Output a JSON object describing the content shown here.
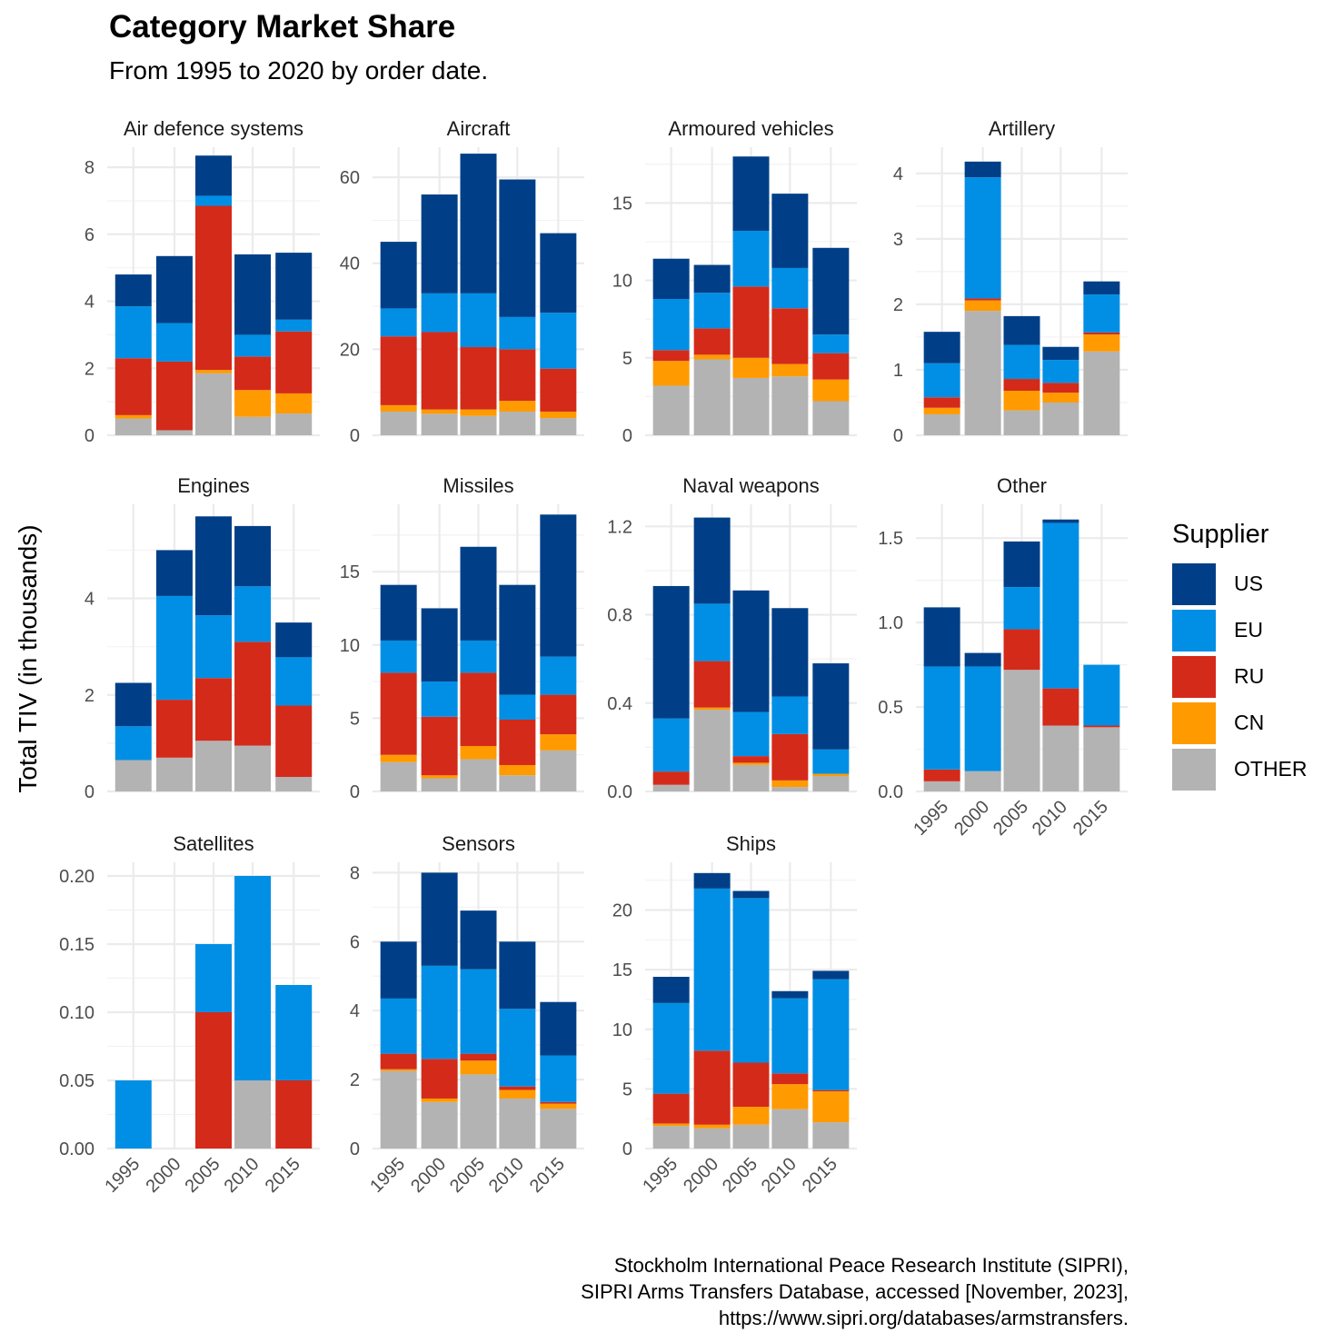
{
  "title": "Category Market Share",
  "subtitle": "From 1995 to 2020 by order date.",
  "caption": [
    "Stockholm International Peace Research Institute (SIPRI),",
    "SIPRI Arms Transfers Database, accessed [November, 2023],",
    "https://www.sipri.org/databases/armstransfers."
  ],
  "legend": {
    "title": "Supplier",
    "items": [
      {
        "label": "US",
        "color": "#003F87"
      },
      {
        "label": "EU",
        "color": "#008FE5"
      },
      {
        "label": "RU",
        "color": "#D42A1A"
      },
      {
        "label": "CN",
        "color": "#FF9A00"
      },
      {
        "label": "OTHER",
        "color": "#B3B3B3"
      }
    ]
  },
  "chart_data": {
    "type": "bar",
    "stacked": true,
    "ylabel": "Total TIV (in thousands)",
    "xlabel": "",
    "x": [
      1995,
      2000,
      2005,
      2010,
      2015
    ],
    "x_ticks": [
      "1995",
      "2000",
      "2005",
      "2010",
      "2015"
    ],
    "stack_order_bottom_to_top": [
      "OTHER",
      "CN",
      "RU",
      "EU",
      "US"
    ],
    "colors": {
      "US": "#003F87",
      "EU": "#008FE5",
      "RU": "#D42A1A",
      "CN": "#FF9A00",
      "OTHER": "#B3B3B3"
    },
    "panels": [
      {
        "name": "Air defence systems",
        "ylim": [
          0,
          8.6
        ],
        "y_ticks": [
          0,
          2,
          4,
          6,
          8
        ],
        "tick_labels": [
          "0",
          "2",
          "4",
          "6",
          "8"
        ],
        "bars": [
          {
            "OTHER": 0.5,
            "CN": 0.1,
            "RU": 1.7,
            "EU": 1.55,
            "US": 0.95
          },
          {
            "OTHER": 0.15,
            "CN": 0.0,
            "RU": 2.05,
            "EU": 1.15,
            "US": 2.0
          },
          {
            "OTHER": 1.85,
            "CN": 0.1,
            "RU": 4.9,
            "EU": 0.3,
            "US": 1.2
          },
          {
            "OTHER": 0.55,
            "CN": 0.8,
            "RU": 1.0,
            "EU": 0.65,
            "US": 2.4
          },
          {
            "OTHER": 0.65,
            "CN": 0.6,
            "RU": 1.85,
            "EU": 0.35,
            "US": 2.0
          }
        ]
      },
      {
        "name": "Aircraft",
        "ylim": [
          0,
          67
        ],
        "y_ticks": [
          0,
          20,
          40,
          60
        ],
        "tick_labels": [
          "0",
          "20",
          "40",
          "60"
        ],
        "bars": [
          {
            "OTHER": 5.5,
            "CN": 1.5,
            "RU": 16.0,
            "EU": 6.5,
            "US": 15.5
          },
          {
            "OTHER": 5.0,
            "CN": 1.0,
            "RU": 18.0,
            "EU": 9.0,
            "US": 23.0
          },
          {
            "OTHER": 4.5,
            "CN": 1.5,
            "RU": 14.5,
            "EU": 12.5,
            "US": 32.5
          },
          {
            "OTHER": 5.5,
            "CN": 2.5,
            "RU": 12.0,
            "EU": 7.5,
            "US": 32.0
          },
          {
            "OTHER": 4.0,
            "CN": 1.5,
            "RU": 10.0,
            "EU": 13.0,
            "US": 18.5
          }
        ]
      },
      {
        "name": "Armoured vehicles",
        "ylim": [
          0,
          18.6
        ],
        "y_ticks": [
          0,
          5,
          10,
          15
        ],
        "tick_labels": [
          "0",
          "5",
          "10",
          "15"
        ],
        "bars": [
          {
            "OTHER": 3.2,
            "CN": 1.6,
            "RU": 0.7,
            "EU": 3.3,
            "US": 2.6
          },
          {
            "OTHER": 4.9,
            "CN": 0.3,
            "RU": 1.7,
            "EU": 2.3,
            "US": 1.8
          },
          {
            "OTHER": 3.7,
            "CN": 1.3,
            "RU": 4.6,
            "EU": 3.6,
            "US": 4.8
          },
          {
            "OTHER": 3.8,
            "CN": 0.8,
            "RU": 3.6,
            "EU": 2.6,
            "US": 4.8
          },
          {
            "OTHER": 2.2,
            "CN": 1.4,
            "RU": 1.7,
            "EU": 1.2,
            "US": 5.6
          }
        ]
      },
      {
        "name": "Artillery",
        "ylim": [
          0,
          4.4
        ],
        "y_ticks": [
          0,
          1,
          2,
          3,
          4
        ],
        "tick_labels": [
          "0",
          "1",
          "2",
          "3",
          "4"
        ],
        "bars": [
          {
            "OTHER": 0.32,
            "CN": 0.1,
            "RU": 0.16,
            "EU": 0.52,
            "US": 0.48
          },
          {
            "OTHER": 1.9,
            "CN": 0.16,
            "RU": 0.03,
            "EU": 1.85,
            "US": 0.24
          },
          {
            "OTHER": 0.38,
            "CN": 0.3,
            "RU": 0.18,
            "EU": 0.52,
            "US": 0.44
          },
          {
            "OTHER": 0.5,
            "CN": 0.15,
            "RU": 0.15,
            "EU": 0.35,
            "US": 0.2
          },
          {
            "OTHER": 1.28,
            "CN": 0.26,
            "RU": 0.03,
            "EU": 0.58,
            "US": 0.2
          }
        ]
      },
      {
        "name": "Engines",
        "ylim": [
          0,
          5.95
        ],
        "y_ticks": [
          0,
          2,
          4
        ],
        "tick_labels": [
          "0",
          "2",
          "4"
        ],
        "bars": [
          {
            "OTHER": 0.65,
            "CN": 0.0,
            "RU": 0.0,
            "EU": 0.7,
            "US": 0.9
          },
          {
            "OTHER": 0.7,
            "CN": 0.0,
            "RU": 1.2,
            "EU": 2.15,
            "US": 0.95
          },
          {
            "OTHER": 1.05,
            "CN": 0.0,
            "RU": 1.3,
            "EU": 1.3,
            "US": 2.05
          },
          {
            "OTHER": 0.95,
            "CN": 0.0,
            "RU": 2.15,
            "EU": 1.15,
            "US": 1.25
          },
          {
            "OTHER": 0.3,
            "CN": 0.0,
            "RU": 1.48,
            "EU": 1.0,
            "US": 0.72
          }
        ]
      },
      {
        "name": "Missiles",
        "ylim": [
          0,
          19.6
        ],
        "y_ticks": [
          0,
          5,
          10,
          15
        ],
        "tick_labels": [
          "0",
          "5",
          "10",
          "15"
        ],
        "bars": [
          {
            "OTHER": 2.0,
            "CN": 0.5,
            "RU": 5.6,
            "EU": 2.2,
            "US": 3.8
          },
          {
            "OTHER": 0.9,
            "CN": 0.2,
            "RU": 4.0,
            "EU": 2.4,
            "US": 5.0
          },
          {
            "OTHER": 2.2,
            "CN": 0.9,
            "RU": 5.0,
            "EU": 2.2,
            "US": 6.4
          },
          {
            "OTHER": 1.1,
            "CN": 0.7,
            "RU": 3.1,
            "EU": 1.7,
            "US": 7.5
          },
          {
            "OTHER": 2.8,
            "CN": 1.1,
            "RU": 2.7,
            "EU": 2.6,
            "US": 9.7
          }
        ]
      },
      {
        "name": "Naval weapons",
        "ylim": [
          0,
          1.3
        ],
        "y_ticks": [
          0,
          0.4,
          0.8,
          1.2
        ],
        "tick_labels": [
          "0.0",
          "0.4",
          "0.8",
          "1.2"
        ],
        "bars": [
          {
            "OTHER": 0.03,
            "CN": 0.0,
            "RU": 0.06,
            "EU": 0.24,
            "US": 0.6
          },
          {
            "OTHER": 0.37,
            "CN": 0.01,
            "RU": 0.21,
            "EU": 0.26,
            "US": 0.39
          },
          {
            "OTHER": 0.12,
            "CN": 0.01,
            "RU": 0.03,
            "EU": 0.2,
            "US": 0.55
          },
          {
            "OTHER": 0.02,
            "CN": 0.03,
            "RU": 0.21,
            "EU": 0.17,
            "US": 0.4
          },
          {
            "OTHER": 0.07,
            "CN": 0.01,
            "RU": 0.0,
            "EU": 0.11,
            "US": 0.39
          }
        ]
      },
      {
        "name": "Other",
        "ylim": [
          0,
          1.7
        ],
        "y_ticks": [
          0,
          0.5,
          1.0,
          1.5
        ],
        "tick_labels": [
          "0.0",
          "0.5",
          "1.0",
          "1.5"
        ],
        "bars": [
          {
            "OTHER": 0.06,
            "CN": 0.0,
            "RU": 0.07,
            "EU": 0.61,
            "US": 0.35
          },
          {
            "OTHER": 0.12,
            "CN": 0.0,
            "RU": 0.0,
            "EU": 0.62,
            "US": 0.08
          },
          {
            "OTHER": 0.72,
            "CN": 0.0,
            "RU": 0.24,
            "EU": 0.25,
            "US": 0.27
          },
          {
            "OTHER": 0.39,
            "CN": 0.0,
            "RU": 0.22,
            "EU": 0.98,
            "US": 0.02
          },
          {
            "OTHER": 0.38,
            "CN": 0.0,
            "RU": 0.01,
            "EU": 0.36,
            "US": 0.0
          }
        ]
      },
      {
        "name": "Satellites",
        "ylim": [
          0,
          0.21
        ],
        "y_ticks": [
          0,
          0.05,
          0.1,
          0.15,
          0.2
        ],
        "tick_labels": [
          "0.00",
          "0.05",
          "0.10",
          "0.15",
          "0.20"
        ],
        "bars": [
          {
            "OTHER": 0.0,
            "CN": 0.0,
            "RU": 0.0,
            "EU": 0.05,
            "US": 0.0
          },
          {
            "OTHER": 0.0,
            "CN": 0.0,
            "RU": 0.0,
            "EU": 0.0,
            "US": 0.0
          },
          {
            "OTHER": 0.0,
            "CN": 0.0,
            "RU": 0.1,
            "EU": 0.05,
            "US": 0.0
          },
          {
            "OTHER": 0.05,
            "CN": 0.0,
            "RU": 0.0,
            "EU": 0.15,
            "US": 0.0
          },
          {
            "OTHER": 0.0,
            "CN": 0.0,
            "RU": 0.05,
            "EU": 0.07,
            "US": 0.0
          }
        ]
      },
      {
        "name": "Sensors",
        "ylim": [
          0,
          8.3
        ],
        "y_ticks": [
          0,
          2,
          4,
          6,
          8
        ],
        "tick_labels": [
          "0",
          "2",
          "4",
          "6",
          "8"
        ],
        "bars": [
          {
            "OTHER": 2.25,
            "CN": 0.05,
            "RU": 0.45,
            "EU": 1.6,
            "US": 1.65
          },
          {
            "OTHER": 1.35,
            "CN": 0.1,
            "RU": 1.15,
            "EU": 2.7,
            "US": 2.7
          },
          {
            "OTHER": 2.15,
            "CN": 0.4,
            "RU": 0.2,
            "EU": 2.45,
            "US": 1.7
          },
          {
            "OTHER": 1.45,
            "CN": 0.25,
            "RU": 0.1,
            "EU": 2.25,
            "US": 1.95
          },
          {
            "OTHER": 1.15,
            "CN": 0.15,
            "RU": 0.05,
            "EU": 1.35,
            "US": 1.55
          }
        ]
      },
      {
        "name": "Ships",
        "ylim": [
          0,
          24
        ],
        "y_ticks": [
          0,
          5,
          10,
          15,
          20
        ],
        "tick_labels": [
          "0",
          "5",
          "10",
          "15",
          "20"
        ],
        "bars": [
          {
            "OTHER": 1.9,
            "CN": 0.2,
            "RU": 2.5,
            "EU": 7.6,
            "US": 2.2
          },
          {
            "OTHER": 1.7,
            "CN": 0.3,
            "RU": 6.2,
            "EU": 13.6,
            "US": 1.3
          },
          {
            "OTHER": 2.0,
            "CN": 1.5,
            "RU": 3.7,
            "EU": 13.8,
            "US": 0.6
          },
          {
            "OTHER": 3.3,
            "CN": 2.1,
            "RU": 0.9,
            "EU": 6.3,
            "US": 0.6
          },
          {
            "OTHER": 2.2,
            "CN": 2.6,
            "RU": 0.1,
            "EU": 9.3,
            "US": 0.7
          }
        ]
      }
    ]
  }
}
